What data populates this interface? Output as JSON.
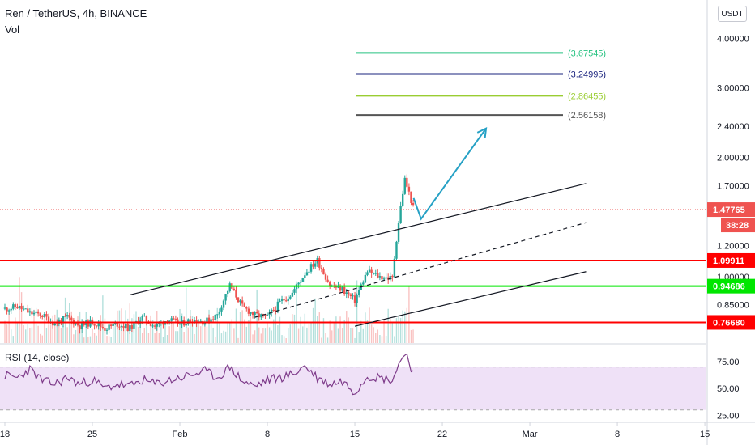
{
  "header": {
    "title": "Ren / TetherUS, 4h, BINANCE",
    "volume_label": "Vol",
    "currency": "USDT",
    "rsi_label": "RSI (14, close)"
  },
  "chart_data": [
    {
      "type": "candlestick",
      "title": "Ren / TetherUS, 4h, BINANCE",
      "scale": "log",
      "ylim": [
        0.68,
        5.0
      ],
      "y_ticks": [
        {
          "value": 4.0,
          "label": "4.00000"
        },
        {
          "value": 3.0,
          "label": "3.00000"
        },
        {
          "value": 2.4,
          "label": "2.40000"
        },
        {
          "value": 2.0,
          "label": "2.00000"
        },
        {
          "value": 1.7,
          "label": "1.70000"
        },
        {
          "value": 1.2,
          "label": "1.20000"
        },
        {
          "value": 1.0,
          "label": "1.00000"
        },
        {
          "value": 0.85,
          "label": "0.85000"
        }
      ],
      "x_ticks": [
        {
          "label": "18",
          "day": 0
        },
        {
          "label": "25",
          "day": 7
        },
        {
          "label": "Feb",
          "day": 14
        },
        {
          "label": "8",
          "day": 21
        },
        {
          "label": "15",
          "day": 28
        },
        {
          "label": "22",
          "day": 35
        },
        {
          "label": "Mar",
          "day": 42
        },
        {
          "label": "8",
          "day": 49
        },
        {
          "label": "15",
          "day": 56
        }
      ],
      "current_price": {
        "value": 1.47765,
        "label": "1.47765",
        "countdown": "38:28",
        "color": "#ef5350"
      },
      "levels": [
        {
          "value": 1.09911,
          "label": "1.09911",
          "color": "#ff0000"
        },
        {
          "value": 0.94686,
          "label": "0.94686",
          "color": "#00e600"
        },
        {
          "value": 0.7668,
          "label": "0.76680",
          "color": "#ff0000"
        }
      ],
      "targets": [
        {
          "value": 3.67545,
          "label": "(3.67545)",
          "color": "#26c281"
        },
        {
          "value": 3.24995,
          "label": "(3.24995)",
          "color": "#1a237e"
        },
        {
          "value": 2.86455,
          "label": "(2.86455)",
          "color": "#9acd32"
        },
        {
          "value": 2.56158,
          "label": "(2.56158)",
          "color": "#555555"
        }
      ],
      "channel": {
        "upper": [
          {
            "day": 10,
            "price": 0.9
          },
          {
            "day": 46.5,
            "price": 1.72
          }
        ],
        "middle": [
          {
            "day": 20,
            "price": 0.79
          },
          {
            "day": 46.5,
            "price": 1.37
          }
        ],
        "lower": [
          {
            "day": 28,
            "price": 0.75
          },
          {
            "day": 46.5,
            "price": 1.03
          }
        ]
      },
      "projection": [
        {
          "day": 32.7,
          "price": 1.58
        },
        {
          "day": 33.3,
          "price": 1.4
        },
        {
          "day": 38.5,
          "price": 2.37
        }
      ],
      "projection_color": "#26a1c5",
      "candles_daily": [
        {
          "day": 0,
          "close": 0.83
        },
        {
          "day": 1,
          "close": 0.84
        },
        {
          "day": 2,
          "close": 0.81
        },
        {
          "day": 3,
          "close": 0.8
        },
        {
          "day": 4,
          "close": 0.76
        },
        {
          "day": 5,
          "close": 0.79
        },
        {
          "day": 6,
          "close": 0.75
        },
        {
          "day": 7,
          "close": 0.77
        },
        {
          "day": 8,
          "close": 0.74
        },
        {
          "day": 9,
          "close": 0.76
        },
        {
          "day": 10,
          "close": 0.74
        },
        {
          "day": 11,
          "close": 0.79
        },
        {
          "day": 12,
          "close": 0.75
        },
        {
          "day": 13,
          "close": 0.78
        },
        {
          "day": 14,
          "close": 0.76
        },
        {
          "day": 15,
          "close": 0.78
        },
        {
          "day": 16,
          "close": 0.77
        },
        {
          "day": 17,
          "close": 0.8
        },
        {
          "day": 18,
          "close": 0.95
        },
        {
          "day": 19,
          "close": 0.84
        },
        {
          "day": 20,
          "close": 0.8
        },
        {
          "day": 21,
          "close": 0.79
        },
        {
          "day": 22,
          "close": 0.86
        },
        {
          "day": 23,
          "close": 0.91
        },
        {
          "day": 24,
          "close": 1.02
        },
        {
          "day": 25,
          "close": 1.1
        },
        {
          "day": 26,
          "close": 0.95
        },
        {
          "day": 27,
          "close": 0.93
        },
        {
          "day": 28,
          "close": 0.87
        },
        {
          "day": 29,
          "close": 1.03
        },
        {
          "day": 30,
          "close": 1.0
        },
        {
          "day": 31,
          "close": 0.99
        },
        {
          "day": 32,
          "close": 1.76
        },
        {
          "day": 32.7,
          "close": 1.48
        }
      ],
      "rsi": {
        "ylim": [
          20,
          90
        ],
        "ticks": [
          75,
          50,
          25
        ],
        "tick_labels": [
          "75.00",
          "50.00",
          "25.00"
        ],
        "band": [
          30,
          70
        ],
        "line_color": "#7e3b8a",
        "band_color": "#efe1f7",
        "daily": [
          {
            "day": 0,
            "value": 62
          },
          {
            "day": 1,
            "value": 60
          },
          {
            "day": 2,
            "value": 68
          },
          {
            "day": 3,
            "value": 57
          },
          {
            "day": 4,
            "value": 54
          },
          {
            "day": 5,
            "value": 60
          },
          {
            "day": 6,
            "value": 54
          },
          {
            "day": 7,
            "value": 58
          },
          {
            "day": 8,
            "value": 50
          },
          {
            "day": 9,
            "value": 54
          },
          {
            "day": 10,
            "value": 52
          },
          {
            "day": 11,
            "value": 58
          },
          {
            "day": 12,
            "value": 54
          },
          {
            "day": 13,
            "value": 57
          },
          {
            "day": 14,
            "value": 60
          },
          {
            "day": 15,
            "value": 63
          },
          {
            "day": 16,
            "value": 66
          },
          {
            "day": 17,
            "value": 60
          },
          {
            "day": 18,
            "value": 70
          },
          {
            "day": 19,
            "value": 57
          },
          {
            "day": 20,
            "value": 52
          },
          {
            "day": 21,
            "value": 58
          },
          {
            "day": 22,
            "value": 60
          },
          {
            "day": 23,
            "value": 63
          },
          {
            "day": 24,
            "value": 71
          },
          {
            "day": 25,
            "value": 60
          },
          {
            "day": 26,
            "value": 54
          },
          {
            "day": 27,
            "value": 57
          },
          {
            "day": 28,
            "value": 47
          },
          {
            "day": 29,
            "value": 62
          },
          {
            "day": 30,
            "value": 60
          },
          {
            "day": 31,
            "value": 58
          },
          {
            "day": 32,
            "value": 85
          },
          {
            "day": 32.7,
            "value": 64
          }
        ]
      }
    }
  ]
}
